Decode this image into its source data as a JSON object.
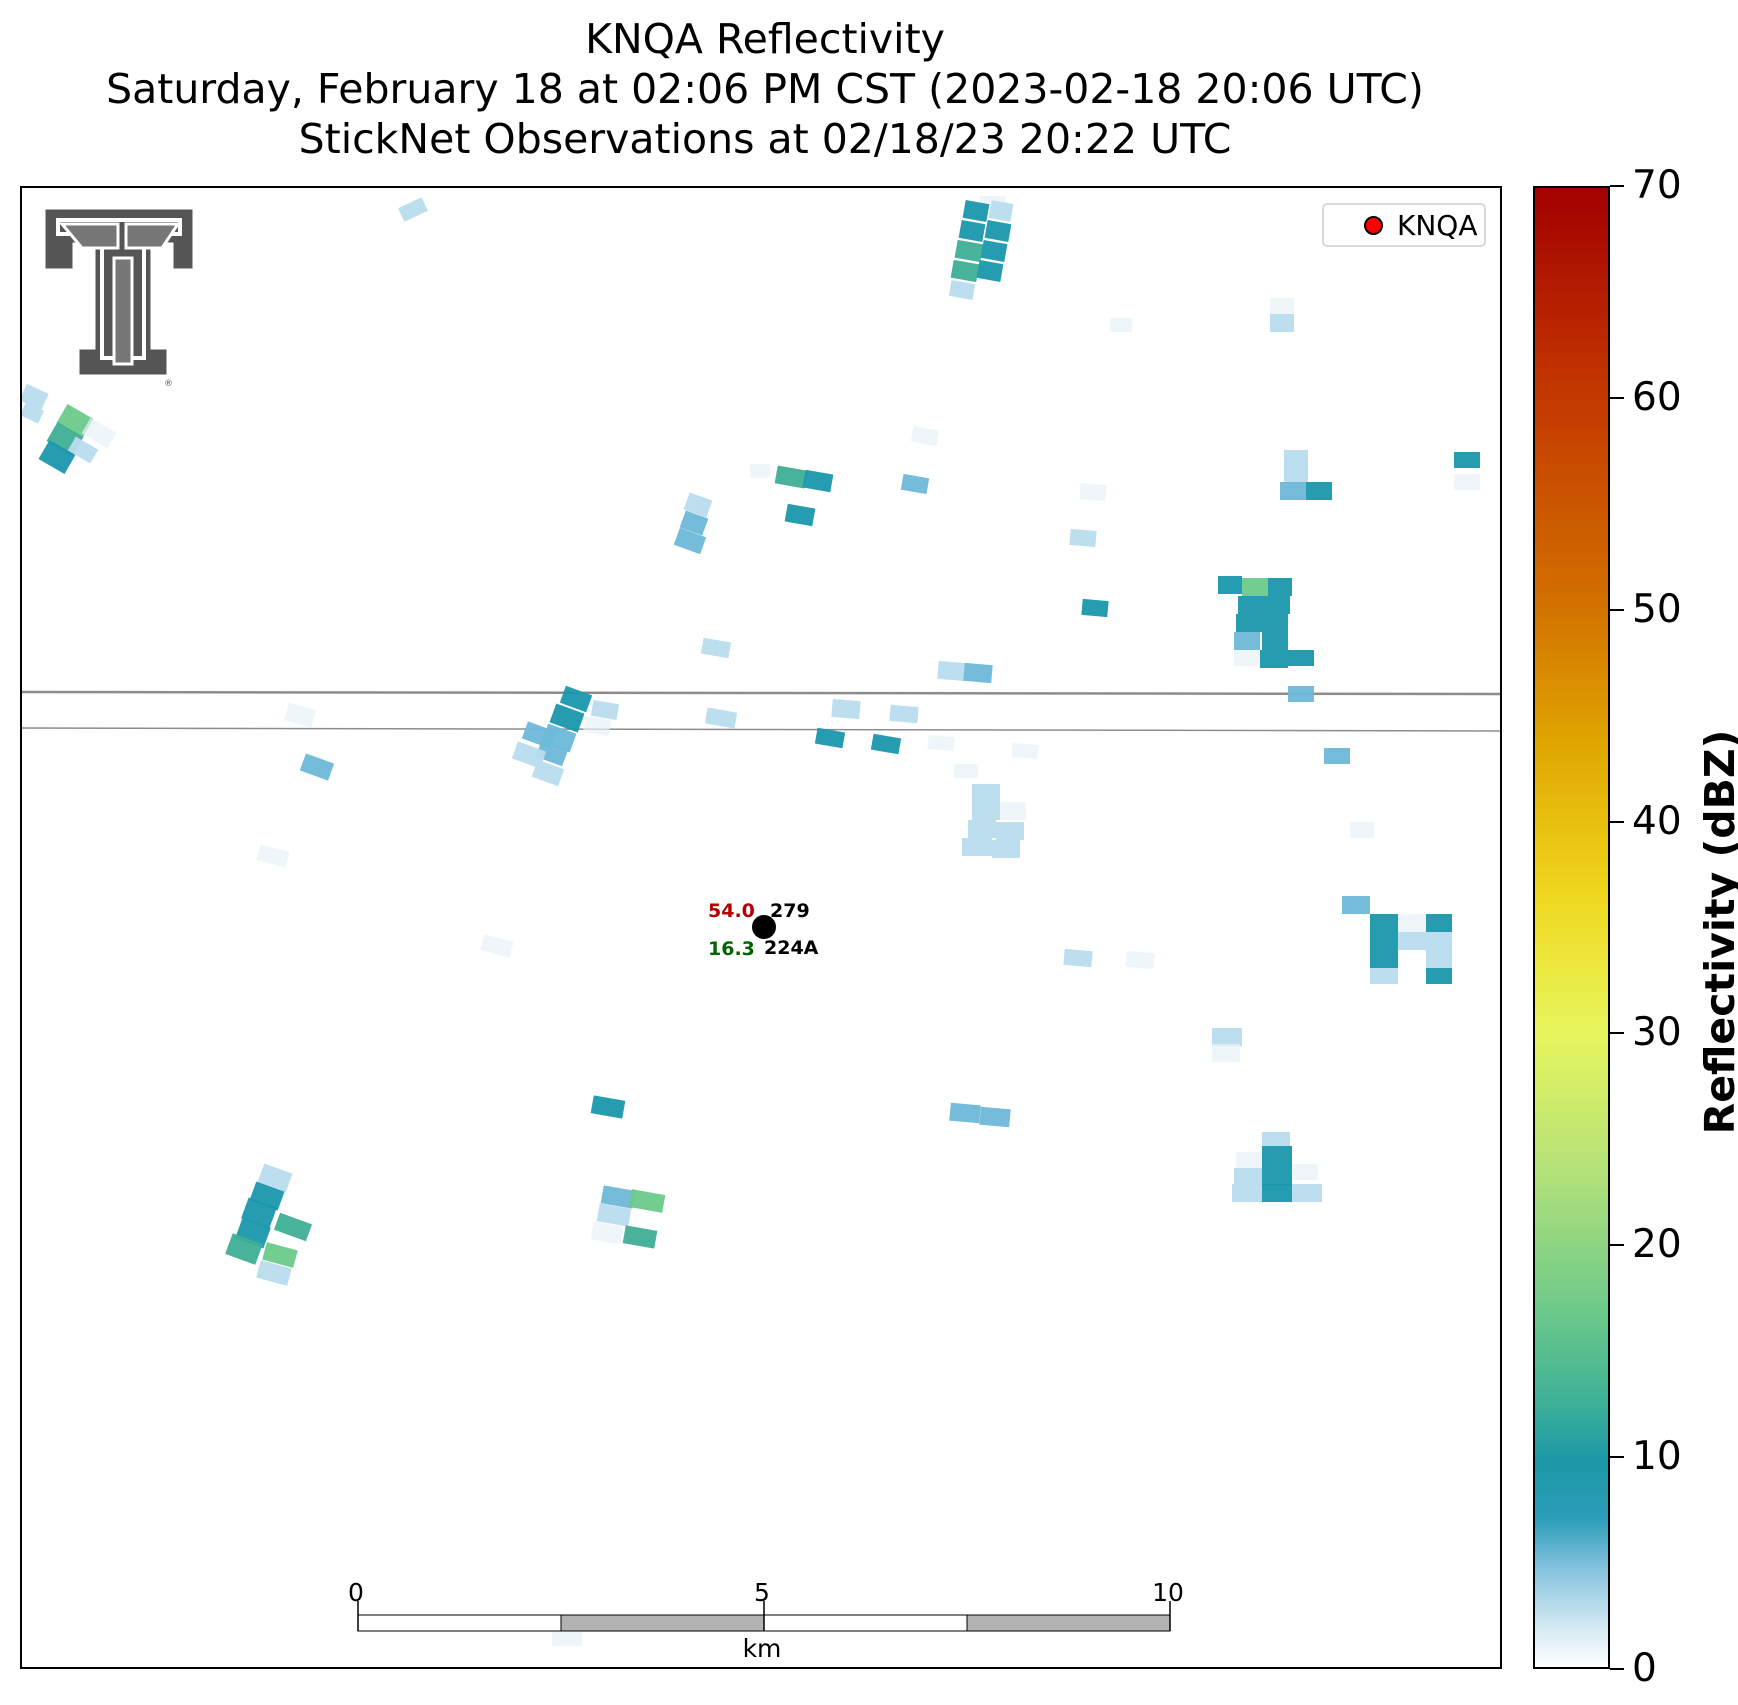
{
  "title": {
    "line1": "KNQA Reflectivity",
    "line2": "Saturday, February 18 at 02:06 PM CST (2023-02-18 20:06 UTC)",
    "line3": "StickNet Observations at 02/18/23 20:22 UTC"
  },
  "legend": {
    "label": "KNQA",
    "marker_color": "#ff0000"
  },
  "station": {
    "temperature": "54.0",
    "temperature_color": "#b30000",
    "dewpoint": "16.3",
    "dewpoint_color": "#006400",
    "value": "279",
    "id": "224A"
  },
  "scalebar": {
    "ticks": [
      "0",
      "5",
      "10"
    ],
    "unit": "km"
  },
  "colorbar": {
    "label": "Reflectivity (dBZ)",
    "min": 0,
    "max": 70,
    "ticks": [
      "0",
      "10",
      "20",
      "30",
      "40",
      "50",
      "60",
      "70"
    ]
  },
  "colors": {
    "road": "#8c8c8c",
    "pale": "#e8f2f8",
    "light": "#b9dcee",
    "mid": "#6db8d8",
    "teal": "#1a97ad",
    "teal_green": "#3fae96",
    "green": "#6cc98a"
  },
  "logo": {
    "name": "texas-tech-double-t-logo"
  }
}
